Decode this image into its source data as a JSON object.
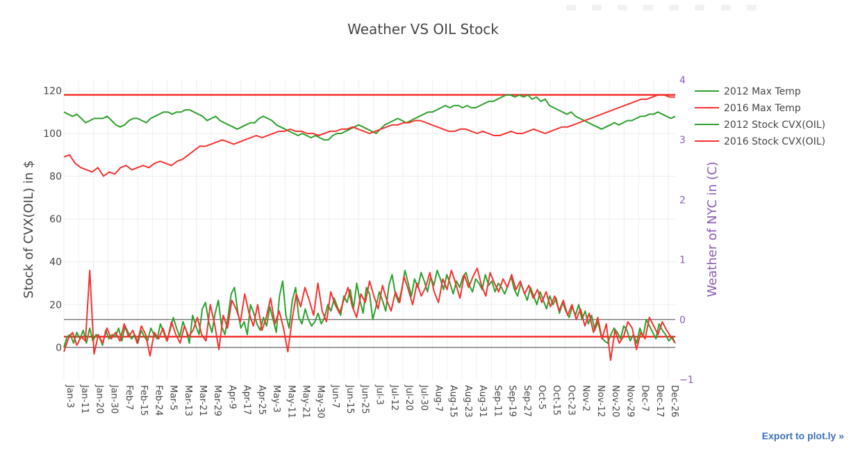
{
  "chart_data": {
    "type": "line",
    "title": "Weather VS OIL Stock",
    "ylabel": "Stock of CVX(OIL) in $",
    "y2label": "Weather of NYC in (C)",
    "ylim": [
      -15,
      125
    ],
    "y2lim": [
      -1,
      4
    ],
    "y_ticks": [
      "0",
      "20",
      "40",
      "60",
      "80",
      "100",
      "120"
    ],
    "y2_ticks": [
      "−1",
      "0",
      "1",
      "2",
      "3",
      "4"
    ],
    "x_ticks": [
      "Jan-3",
      "Jan-11",
      "Jan-20",
      "Jan-30",
      "Feb-7",
      "Feb-15",
      "Feb-24",
      "Mar-5",
      "Mar-13",
      "Mar-21",
      "Mar-29",
      "Apr-9",
      "Apr-17",
      "Apr-25",
      "May-3",
      "May-11",
      "May-21",
      "May-30",
      "Jun-7",
      "Jun-15",
      "Jun-25",
      "Jul-3",
      "Jul-12",
      "Jul-20",
      "Jul-30",
      "Aug-7",
      "Aug-15",
      "Aug-23",
      "Aug-31",
      "Sep-11",
      "Sep-19",
      "Sep-27",
      "Oct-5",
      "Oct-15",
      "Oct-23",
      "Nov-2",
      "Nov-12",
      "Nov-20",
      "Nov-29",
      "Dec-7",
      "Dec-17",
      "Dec-26"
    ],
    "grid": true,
    "legend_position": "top-right",
    "colors": {
      "2012": "#2ca02c",
      "2016": "#f5312f",
      "right_axis": "#8a5cb5"
    },
    "hlines": [
      {
        "label": "2016 horizontal line at stock 118",
        "value": 118,
        "axis": "y",
        "color": "#f5312f"
      },
      {
        "label": "2016 horizontal line at stock 5",
        "value": 5,
        "axis": "y",
        "color": "#f5312f"
      },
      {
        "label": "zero line right axis",
        "value": 0,
        "axis": "y2",
        "color": "#444444"
      },
      {
        "label": "zero line left axis",
        "value": 0,
        "axis": "y",
        "color": "#444444"
      }
    ],
    "series": [
      {
        "name": "2012 Max Temp",
        "color": "#2ca02c",
        "values": [
          0,
          5,
          6,
          2,
          7,
          4,
          8,
          2,
          9,
          3,
          6,
          5,
          1,
          8,
          4,
          6,
          5,
          9,
          3,
          10,
          7,
          4,
          6,
          2,
          8,
          5,
          3,
          9,
          6,
          4,
          11,
          7,
          3,
          8,
          14,
          9,
          5,
          12,
          8,
          2,
          15,
          10,
          6,
          18,
          21,
          12,
          7,
          16,
          22,
          10,
          6,
          14,
          25,
          28,
          17,
          9,
          12,
          6,
          20,
          16,
          11,
          8,
          14,
          10,
          19,
          13,
          7,
          24,
          31,
          15,
          9,
          22,
          28,
          14,
          11,
          18,
          13,
          10,
          12,
          16,
          11,
          14,
          20,
          17,
          23,
          19,
          15,
          24,
          21,
          27,
          18,
          30,
          22,
          16,
          28,
          25,
          13,
          19,
          26,
          22,
          17,
          29,
          34,
          25,
          21,
          27,
          36,
          30,
          24,
          32,
          28,
          35,
          31,
          26,
          33,
          29,
          36,
          32,
          27,
          34,
          30,
          25,
          31,
          28,
          33,
          35,
          29,
          26,
          32,
          30,
          27,
          34,
          29,
          31,
          26,
          30,
          28,
          25,
          29,
          33,
          27,
          24,
          30,
          26,
          22,
          28,
          24,
          20,
          26,
          22,
          18,
          24,
          20,
          23,
          16,
          21,
          17,
          14,
          19,
          15,
          20,
          13,
          17,
          11,
          15,
          8,
          12,
          5,
          3,
          2,
          6,
          9,
          7,
          4,
          10,
          8,
          3,
          6,
          2,
          9,
          5,
          13,
          10,
          7,
          4,
          11,
          8,
          6,
          3,
          5,
          2
        ]
      },
      {
        "name": "2016 Max Temp",
        "color": "#f5312f",
        "values": [
          -2,
          4,
          7,
          1,
          5,
          3,
          36,
          -3,
          6,
          2,
          9,
          4,
          7,
          3,
          11,
          5,
          8,
          2,
          10,
          6,
          -4,
          7,
          4,
          9,
          3,
          12,
          6,
          2,
          10,
          5,
          8,
          14,
          6,
          3,
          20,
          11,
          -1,
          15,
          9,
          22,
          18,
          12,
          25,
          16,
          10,
          20,
          8,
          14,
          23,
          11,
          17,
          9,
          -2,
          13,
          25,
          19,
          28,
          22,
          15,
          30,
          17,
          12,
          26,
          20,
          16,
          22,
          28,
          19,
          14,
          25,
          21,
          31,
          24,
          18,
          29,
          22,
          17,
          26,
          21,
          33,
          27,
          20,
          30,
          24,
          28,
          35,
          26,
          21,
          32,
          27,
          36,
          30,
          23,
          34,
          28,
          33,
          37,
          29,
          24,
          35,
          30,
          26,
          32,
          28,
          34,
          27,
          31,
          25,
          29,
          23,
          27,
          21,
          26,
          19,
          24,
          17,
          22,
          15,
          20,
          13,
          18,
          10,
          16,
          7,
          14,
          4,
          11,
          -6,
          8,
          2,
          5,
          12,
          9,
          -1,
          7,
          4,
          14,
          10,
          6,
          12,
          8,
          5,
          2
        ]
      },
      {
        "name": "2012 Stock CVX(OIL)",
        "color": "#2ca02c",
        "values": [
          110,
          109,
          108,
          109,
          107,
          105,
          106,
          107,
          107,
          107,
          108,
          106,
          104,
          103,
          104,
          106,
          107,
          107,
          106,
          105,
          107,
          108,
          109,
          110,
          110,
          109,
          110,
          110,
          111,
          111,
          110,
          109,
          108,
          106,
          107,
          108,
          106,
          105,
          104,
          103,
          102,
          103,
          104,
          105,
          105,
          107,
          108,
          107,
          106,
          104,
          103,
          102,
          101,
          100,
          99,
          100,
          99,
          98,
          99,
          98,
          97,
          97,
          99,
          100,
          100,
          101,
          102,
          103,
          104,
          103,
          102,
          101,
          100,
          102,
          104,
          105,
          106,
          107,
          106,
          105,
          106,
          107,
          108,
          109,
          110,
          110,
          111,
          112,
          113,
          112,
          113,
          113,
          112,
          113,
          112,
          112,
          113,
          114,
          115,
          115,
          116,
          117,
          118,
          118,
          117,
          118,
          117,
          118,
          116,
          117,
          115,
          116,
          113,
          112,
          111,
          110,
          109,
          110,
          108,
          107,
          106,
          105,
          104,
          103,
          102,
          103,
          104,
          105,
          104,
          105,
          106,
          106,
          107,
          108,
          108,
          109,
          109,
          110,
          109,
          108,
          107,
          108
        ]
      },
      {
        "name": "2016 Stock CVX(OIL)",
        "color": "#f5312f",
        "values": [
          89,
          90,
          86,
          84,
          83,
          82,
          84,
          80,
          82,
          81,
          84,
          85,
          83,
          84,
          85,
          84,
          86,
          87,
          86,
          85,
          87,
          88,
          90,
          92,
          94,
          94,
          95,
          96,
          97,
          96,
          95,
          96,
          97,
          98,
          99,
          98,
          99,
          100,
          101,
          101,
          102,
          101,
          101,
          100,
          100,
          99,
          100,
          101,
          101,
          102,
          102,
          103,
          102,
          101,
          100,
          101,
          102,
          103,
          104,
          104,
          105,
          105,
          106,
          106,
          105,
          104,
          103,
          102,
          101,
          101,
          102,
          102,
          101,
          100,
          101,
          100,
          99,
          99,
          100,
          101,
          100,
          100,
          101,
          102,
          101,
          100,
          101,
          102,
          103,
          103,
          104,
          105,
          106,
          107,
          108,
          109,
          110,
          111,
          112,
          113,
          114,
          115,
          116,
          116,
          117,
          118,
          118,
          117,
          117
        ]
      }
    ]
  },
  "legend": [
    {
      "label": "2012 Max Temp",
      "color": "#2ca02c"
    },
    {
      "label": "2016 Max Temp",
      "color": "#f5312f"
    },
    {
      "label": "2012 Stock CVX(OIL)",
      "color": "#2ca02c"
    },
    {
      "label": "2016 Stock CVX(OIL)",
      "color": "#f5312f"
    }
  ],
  "export_link": "Export to plot.ly »"
}
